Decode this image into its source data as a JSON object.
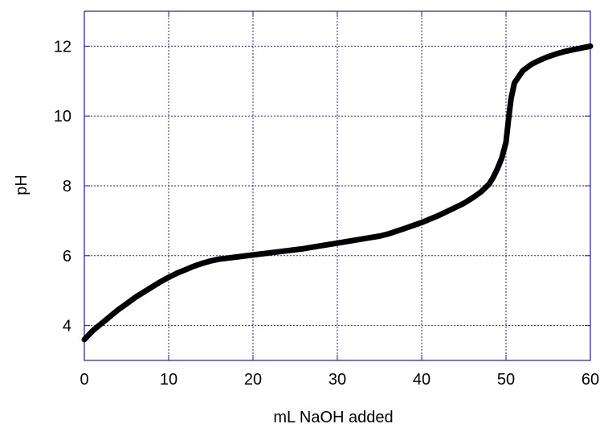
{
  "chart_data": {
    "type": "line",
    "title": "",
    "xlabel": "mL NaOH added",
    "ylabel": "pH",
    "xlim": [
      0,
      60
    ],
    "ylim": [
      3,
      13
    ],
    "xticks": [
      0,
      10,
      20,
      30,
      40,
      50,
      60
    ],
    "yticks": [
      4,
      6,
      8,
      10,
      12
    ],
    "grid": true,
    "colors": {
      "grid": "#2222bb",
      "frame": "#1a1aaa",
      "line": "#000000"
    },
    "series": [
      {
        "x": [
          0,
          1,
          2,
          3,
          4,
          5,
          6,
          7,
          8,
          9,
          10,
          11,
          12,
          13,
          14,
          15,
          16,
          17,
          18,
          20,
          22,
          24,
          26,
          28,
          30,
          32,
          34,
          35,
          36,
          38,
          40,
          42,
          44,
          45,
          46,
          47,
          48,
          48.5,
          49,
          49.5,
          50,
          50.3,
          50.6,
          51,
          52,
          53,
          54,
          55,
          56,
          57,
          58,
          59,
          60
        ],
        "y": [
          3.6,
          3.85,
          4.05,
          4.25,
          4.45,
          4.62,
          4.8,
          4.95,
          5.1,
          5.25,
          5.38,
          5.5,
          5.6,
          5.7,
          5.78,
          5.85,
          5.9,
          5.93,
          5.96,
          6.02,
          6.08,
          6.14,
          6.2,
          6.28,
          6.36,
          6.44,
          6.52,
          6.56,
          6.62,
          6.78,
          6.95,
          7.15,
          7.38,
          7.5,
          7.65,
          7.82,
          8.05,
          8.25,
          8.5,
          8.8,
          9.25,
          9.9,
          10.5,
          10.95,
          11.3,
          11.48,
          11.6,
          11.7,
          11.78,
          11.85,
          11.9,
          11.95,
          12.0
        ]
      }
    ]
  }
}
